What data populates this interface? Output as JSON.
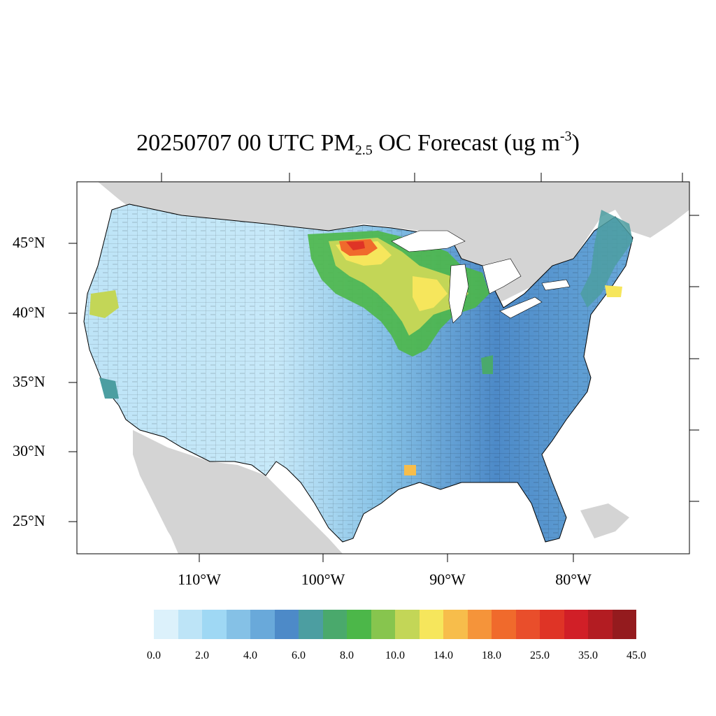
{
  "title": {
    "prefix": "20250707 00 UTC PM",
    "subscript": "2.5",
    "middle": " OC Forecast (ug m",
    "superscript": "-3",
    "suffix": ")"
  },
  "latitude_labels": [
    "45°N",
    "40°N",
    "35°N",
    "30°N",
    "25°N"
  ],
  "longitude_labels": [
    "110°W",
    "100°W",
    "90°W",
    "80°W"
  ],
  "colorbar": {
    "colors": [
      "#dcf1fb",
      "#bde4f7",
      "#9fd8f4",
      "#85c1e6",
      "#69a9da",
      "#4d8ac8",
      "#4c9ea1",
      "#4aa96c",
      "#4cb749",
      "#87c54e",
      "#c3d657",
      "#f6e65c",
      "#f7bd4b",
      "#f5943a",
      "#f06a2c",
      "#e94e2b",
      "#df3426",
      "#d11f27",
      "#b31c22",
      "#941b1e"
    ],
    "labels": [
      "0.0",
      "2.0",
      "4.0",
      "6.0",
      "8.0",
      "10.0",
      "14.0",
      "18.0",
      "25.0",
      "35.0",
      "45.0"
    ]
  },
  "colors": {
    "land_outside": "#d4d4d4",
    "water": "#ffffff",
    "border": "#000000"
  }
}
